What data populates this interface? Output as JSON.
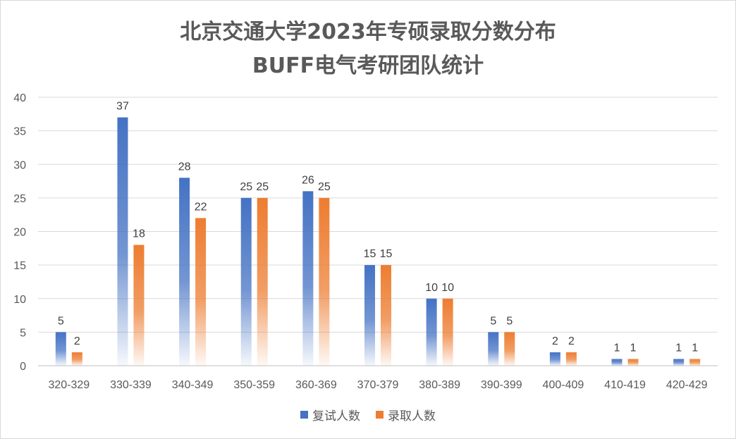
{
  "chart_data": {
    "type": "bar",
    "title": "北京交通大学2023年专硕录取分数分布",
    "subtitle": "BUFF电气考研团队统计",
    "categories": [
      "320-329",
      "330-339",
      "340-349",
      "350-359",
      "360-369",
      "370-379",
      "380-389",
      "390-399",
      "400-409",
      "410-419",
      "420-429"
    ],
    "series": [
      {
        "name": "复试人数",
        "values": [
          5,
          37,
          28,
          25,
          26,
          15,
          10,
          5,
          2,
          1,
          1
        ],
        "color": "#4472C4"
      },
      {
        "name": "录取人数",
        "values": [
          2,
          18,
          22,
          25,
          25,
          15,
          10,
          5,
          2,
          1,
          1
        ],
        "color": "#ED7D31"
      }
    ],
    "ylim": [
      0,
      40
    ],
    "yticks": [
      0,
      5,
      10,
      15,
      20,
      25,
      30,
      35,
      40
    ],
    "grid": true,
    "legend_position": "bottom",
    "xlabel": "",
    "ylabel": ""
  }
}
